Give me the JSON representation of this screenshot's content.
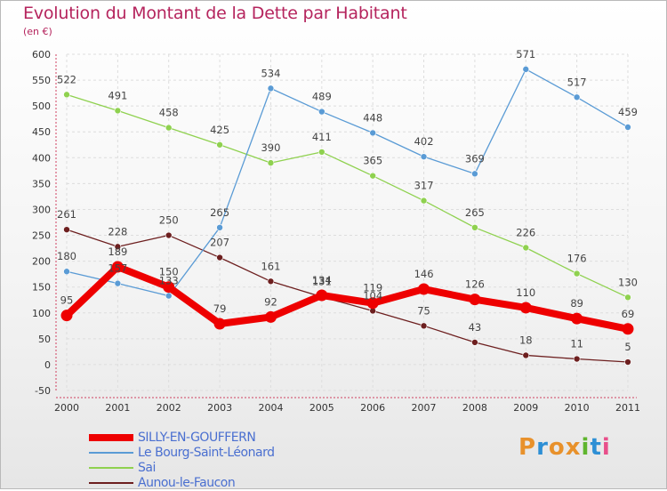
{
  "header": {
    "title": "Evolution du Montant de la Dette par Habitant",
    "subtitle": "(en €)"
  },
  "logo": {
    "text": "Proxiti",
    "letters": [
      "P",
      "r",
      "o",
      "x",
      "i",
      "t",
      "i"
    ],
    "colors": [
      "#e8912b",
      "#2d8fd5",
      "#e8912b",
      "#e8912b",
      "#5fb52e",
      "#2d8fd5",
      "#e84f8a"
    ]
  },
  "chart_data": {
    "type": "line",
    "title": "Evolution du Montant de la Dette par Habitant",
    "ylabel": "(en €)",
    "xlabel": "",
    "ylim": [
      -50,
      600
    ],
    "yticks": [
      -50,
      0,
      50,
      100,
      150,
      200,
      250,
      300,
      350,
      400,
      450,
      500,
      550,
      600
    ],
    "x": [
      "2000",
      "2001",
      "2002",
      "2003",
      "2004",
      "2005",
      "2006",
      "2007",
      "2008",
      "2009",
      "2010",
      "2011"
    ],
    "grid": true,
    "legend_position": "bottom-left",
    "series": [
      {
        "name": "SILLY-EN-GOUFFERN",
        "color": "#ee0000",
        "values": [
          95,
          189,
          150,
          79,
          92,
          134,
          119,
          146,
          126,
          110,
          89,
          69
        ]
      },
      {
        "name": "Le Bourg-Saint-Léonard",
        "color": "#5a9bd5",
        "values": [
          180,
          157,
          133,
          265,
          534,
          489,
          448,
          402,
          369,
          571,
          517,
          459
        ]
      },
      {
        "name": "Sai",
        "color": "#8fd14f",
        "values": [
          522,
          491,
          458,
          425,
          390,
          411,
          365,
          317,
          265,
          226,
          176,
          130
        ]
      },
      {
        "name": "Aunou-le-Faucon",
        "color": "#6d1f1f",
        "values": [
          261,
          228,
          250,
          207,
          161,
          131,
          104,
          75,
          43,
          18,
          11,
          5
        ]
      }
    ]
  }
}
